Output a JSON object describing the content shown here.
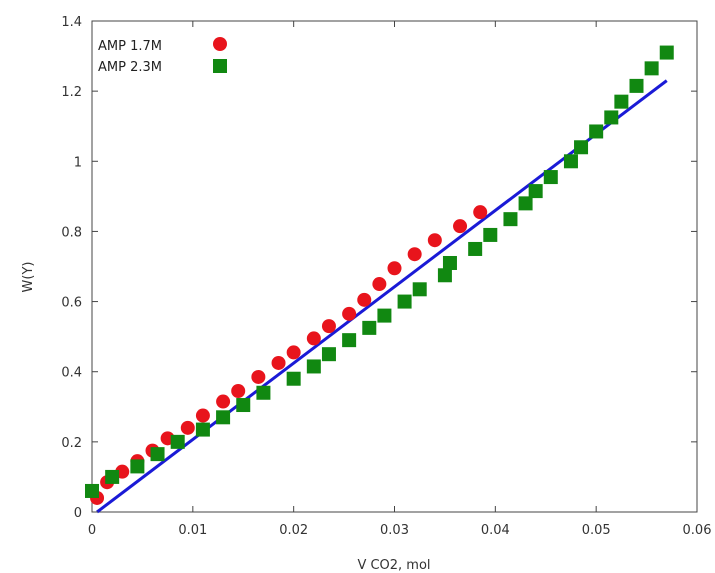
{
  "chart_data": {
    "type": "scatter",
    "title": "",
    "xlabel": "V CO2, mol",
    "ylabel": "W(Y)",
    "xlim": [
      0,
      0.06
    ],
    "ylim": [
      0,
      1.4
    ],
    "x_ticks": [
      "0",
      "0.01",
      "0.02",
      "0.03",
      "0.04",
      "0.05",
      "0.06"
    ],
    "y_ticks": [
      "0",
      "0.2",
      "0.4",
      "0.6",
      "0.8",
      "1",
      "1.2",
      "1.4"
    ],
    "grid": false,
    "legend_position": "top-left",
    "series": [
      {
        "name": "AMP 1.7M",
        "marker": "circle",
        "color": "#e8141c",
        "points": [
          [
            0.0005,
            0.04
          ],
          [
            0.0015,
            0.085
          ],
          [
            0.003,
            0.115
          ],
          [
            0.0045,
            0.145
          ],
          [
            0.006,
            0.175
          ],
          [
            0.0075,
            0.21
          ],
          [
            0.0095,
            0.24
          ],
          [
            0.011,
            0.275
          ],
          [
            0.013,
            0.315
          ],
          [
            0.0145,
            0.345
          ],
          [
            0.0165,
            0.385
          ],
          [
            0.0185,
            0.425
          ],
          [
            0.02,
            0.455
          ],
          [
            0.022,
            0.495
          ],
          [
            0.0235,
            0.53
          ],
          [
            0.0255,
            0.565
          ],
          [
            0.027,
            0.605
          ],
          [
            0.0285,
            0.65
          ],
          [
            0.03,
            0.695
          ],
          [
            0.032,
            0.735
          ],
          [
            0.034,
            0.775
          ],
          [
            0.0365,
            0.815
          ],
          [
            0.0385,
            0.855
          ]
        ]
      },
      {
        "name": "AMP 2.3M",
        "marker": "square",
        "color": "#118811",
        "points": [
          [
            0.0,
            0.06
          ],
          [
            0.002,
            0.1
          ],
          [
            0.0045,
            0.13
          ],
          [
            0.0065,
            0.165
          ],
          [
            0.0085,
            0.2
          ],
          [
            0.011,
            0.235
          ],
          [
            0.013,
            0.27
          ],
          [
            0.015,
            0.305
          ],
          [
            0.017,
            0.34
          ],
          [
            0.02,
            0.38
          ],
          [
            0.022,
            0.415
          ],
          [
            0.0235,
            0.45
          ],
          [
            0.0255,
            0.49
          ],
          [
            0.0275,
            0.525
          ],
          [
            0.029,
            0.56
          ],
          [
            0.031,
            0.6
          ],
          [
            0.0325,
            0.635
          ],
          [
            0.035,
            0.675
          ],
          [
            0.0355,
            0.71
          ],
          [
            0.038,
            0.75
          ],
          [
            0.0395,
            0.79
          ],
          [
            0.0415,
            0.835
          ],
          [
            0.043,
            0.88
          ],
          [
            0.044,
            0.915
          ],
          [
            0.0455,
            0.955
          ],
          [
            0.0475,
            1.0
          ],
          [
            0.0485,
            1.04
          ],
          [
            0.05,
            1.085
          ],
          [
            0.0515,
            1.125
          ],
          [
            0.0525,
            1.17
          ],
          [
            0.054,
            1.215
          ],
          [
            0.0555,
            1.265
          ],
          [
            0.057,
            1.31
          ]
        ]
      }
    ],
    "fit_line": {
      "color": "#1a1ad6",
      "points": [
        [
          0.0005,
          0.0
        ],
        [
          0.057,
          1.23
        ]
      ]
    }
  }
}
